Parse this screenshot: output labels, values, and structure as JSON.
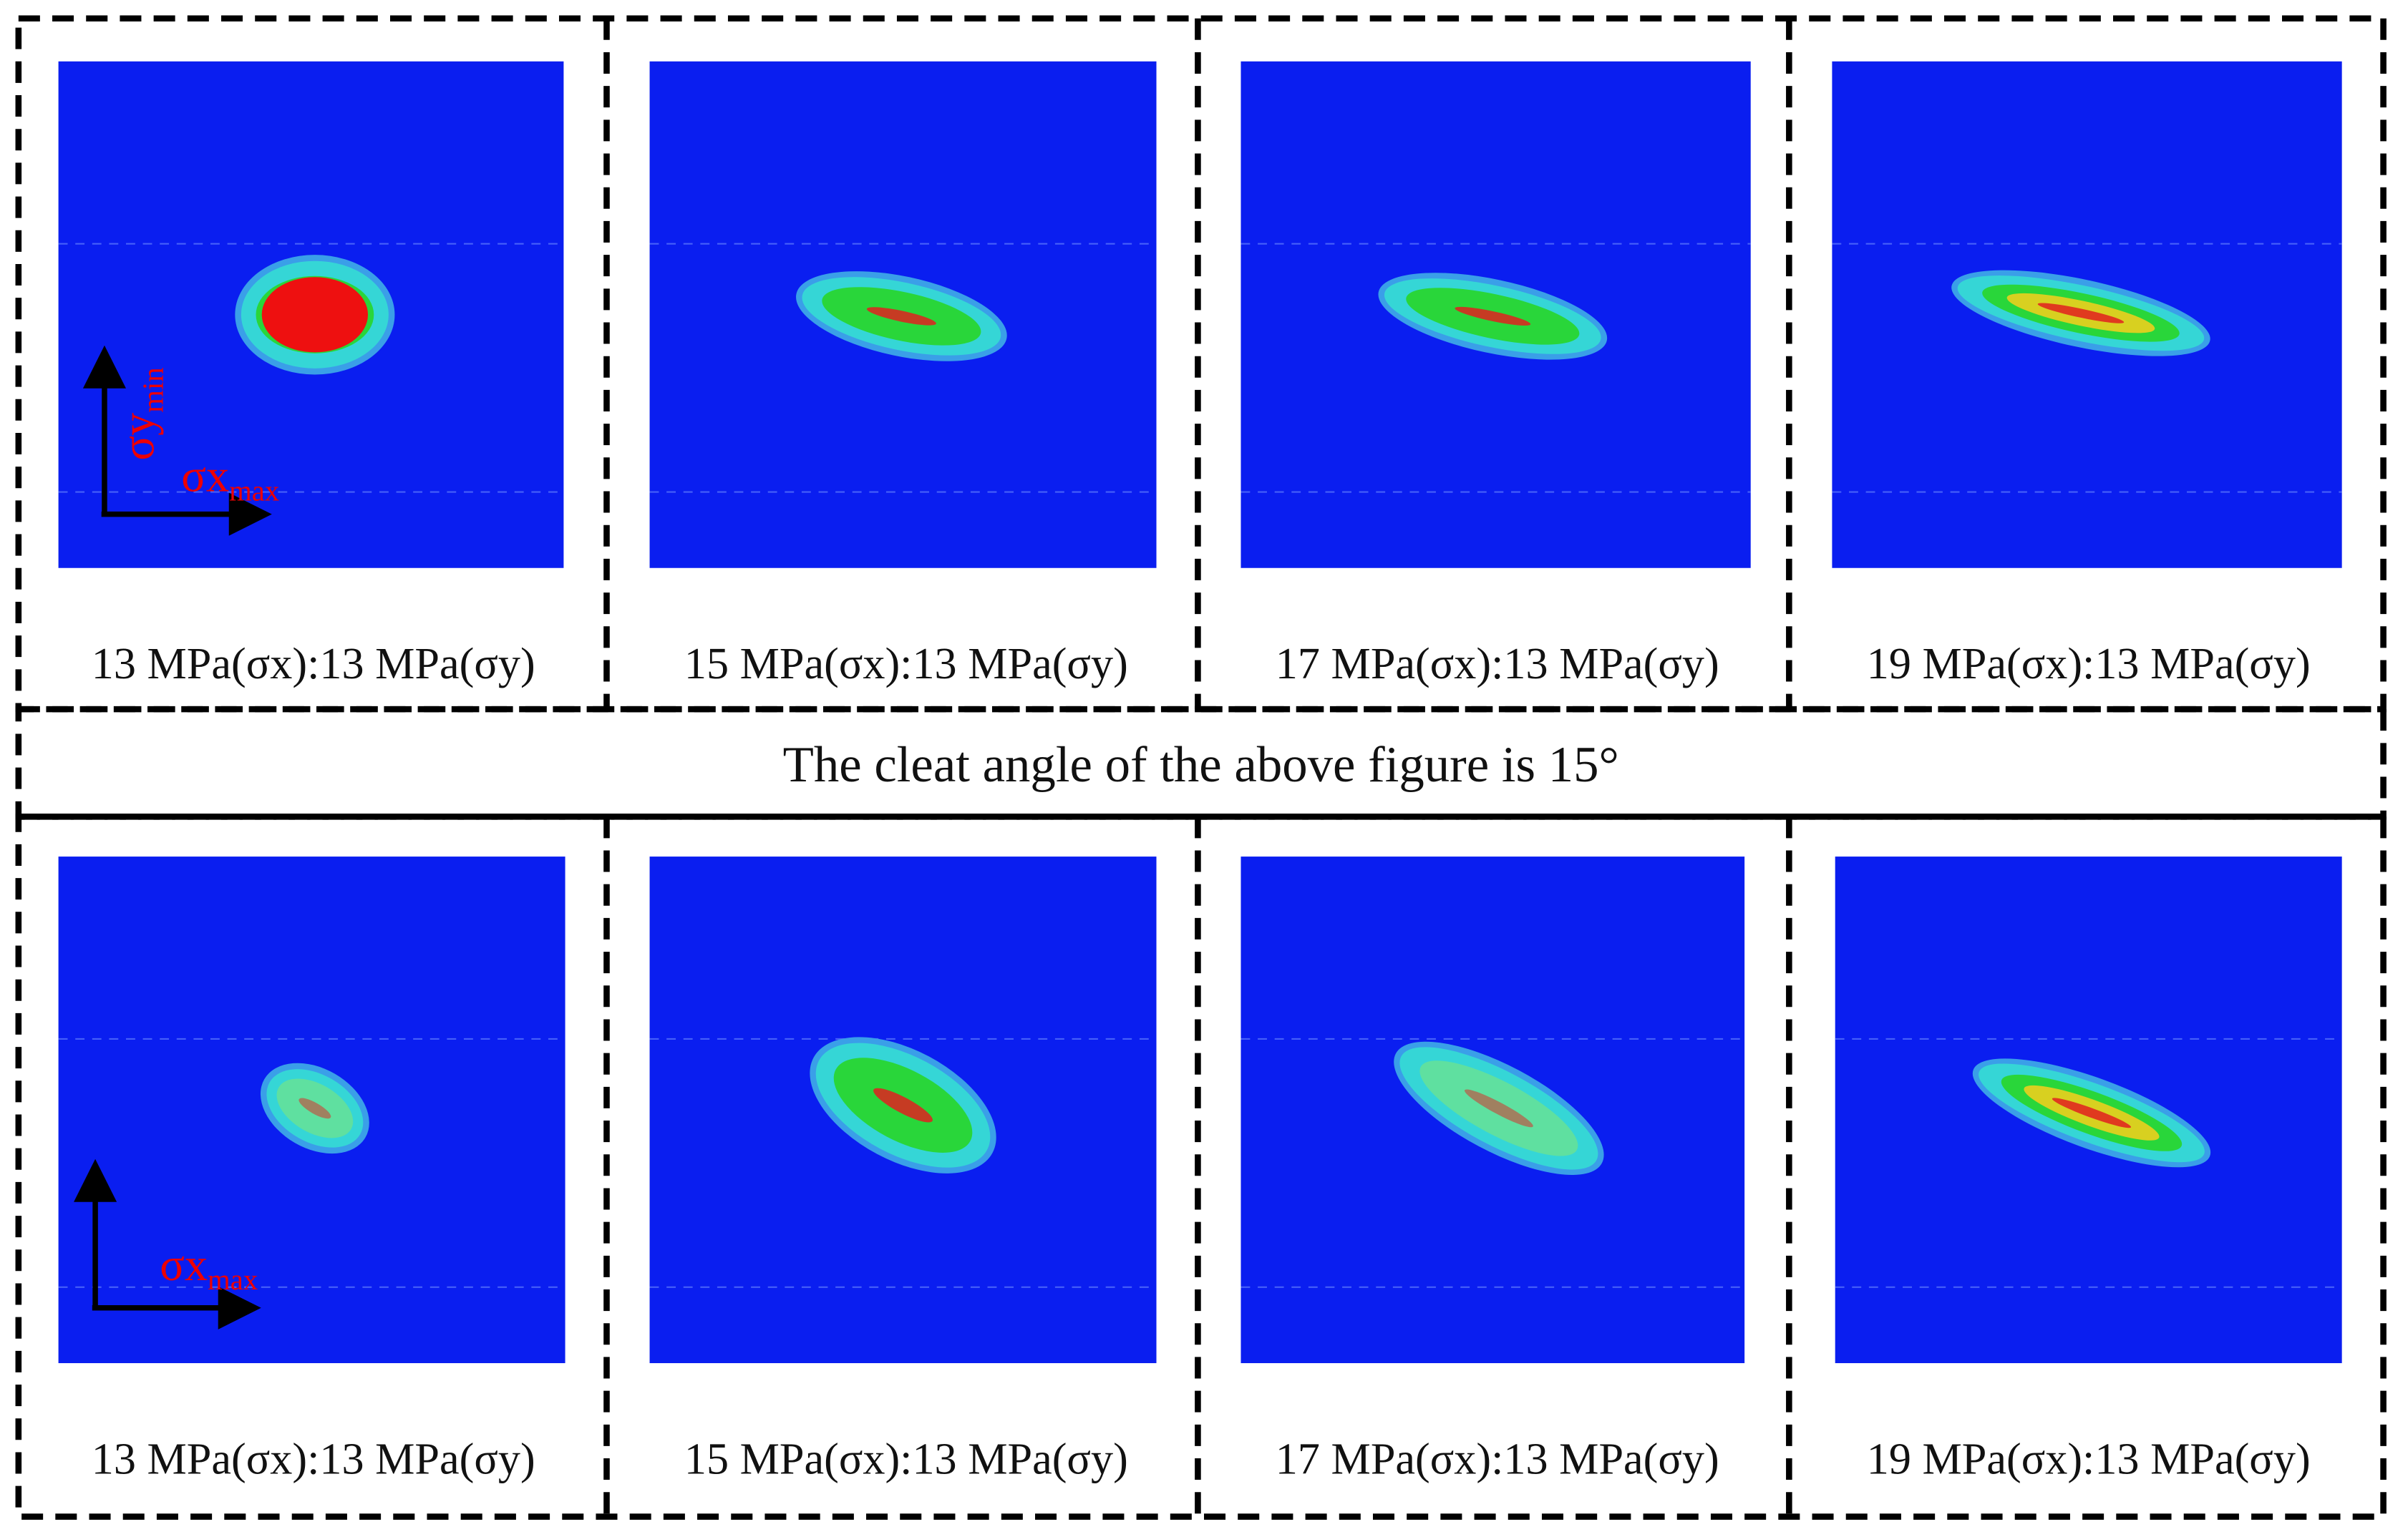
{
  "rows": [
    {
      "panels": [
        {
          "caption": "13 MPa(σx):13 MPa(σy)"
        },
        {
          "caption": "15 MPa(σx):13 MPa(σy)"
        },
        {
          "caption": "17 MPa(σx):13 MPa(σy)"
        },
        {
          "caption": "19 MPa(σx):13 MPa(σy)"
        }
      ],
      "axes": {
        "y": {
          "symbol": "σy",
          "subscript": "min"
        },
        "x": {
          "symbol": "σx",
          "subscript": "max"
        }
      }
    },
    {
      "panels": [
        {
          "caption": "13 MPa(σx):13 MPa(σy)"
        },
        {
          "caption": "15 MPa(σx):13 MPa(σy)"
        },
        {
          "caption": "17 MPa(σx):13 MPa(σy)"
        },
        {
          "caption": "19 MPa(σx):13 MPa(σy)"
        }
      ],
      "axes": {
        "x": {
          "symbol": "σx",
          "subscript": "max"
        }
      }
    }
  ],
  "divider": "The cleat angle of the above figure is 15°"
}
